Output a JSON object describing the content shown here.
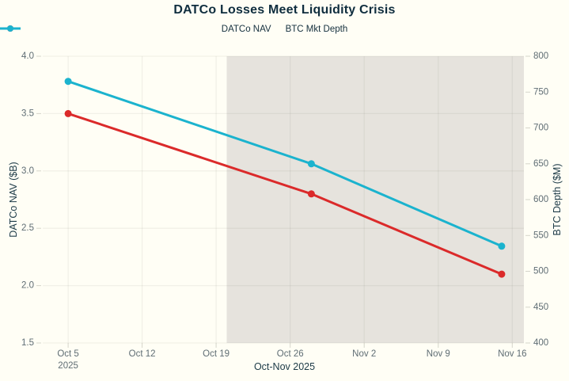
{
  "chart_data": {
    "type": "line",
    "title": "DATCo Losses Meet Liquidity Crisis",
    "xlabel": "Oct-Nov 2025",
    "ylabel_left": "DATCo NAV ($B)",
    "ylabel_right": "BTC Depth ($M)",
    "ylim_left": [
      1.5,
      4.0
    ],
    "ylim_right": [
      400,
      800
    ],
    "x_range_days": [
      -2.4,
      43.1
    ],
    "grid": "on",
    "legend_position": "top-center",
    "x_ticks": [
      {
        "day": 0,
        "label": "Oct 5",
        "sublabel": "2025"
      },
      {
        "day": 7,
        "label": "Oct 12",
        "sublabel": ""
      },
      {
        "day": 14,
        "label": "Oct 19",
        "sublabel": ""
      },
      {
        "day": 21,
        "label": "Oct 26",
        "sublabel": ""
      },
      {
        "day": 28,
        "label": "Nov 2",
        "sublabel": ""
      },
      {
        "day": 35,
        "label": "Nov 9",
        "sublabel": ""
      },
      {
        "day": 42,
        "label": "Nov 16",
        "sublabel": ""
      }
    ],
    "left_ticks": [
      {
        "value": 4.0,
        "label": "4.0"
      },
      {
        "value": 3.5,
        "label": "3.5"
      },
      {
        "value": 3.0,
        "label": "3.0"
      },
      {
        "value": 2.5,
        "label": "2.5"
      },
      {
        "value": 2.0,
        "label": "2.0"
      },
      {
        "value": 1.5,
        "label": "1.5"
      }
    ],
    "right_ticks": [
      {
        "value": 800,
        "label": "800"
      },
      {
        "value": 750,
        "label": "750"
      },
      {
        "value": 700,
        "label": "700"
      },
      {
        "value": 650,
        "label": "650"
      },
      {
        "value": 600,
        "label": "600"
      },
      {
        "value": 550,
        "label": "550"
      },
      {
        "value": 500,
        "label": "500"
      },
      {
        "value": 450,
        "label": "450"
      },
      {
        "value": 400,
        "label": "400"
      }
    ],
    "highlight_region": {
      "start_day": 15,
      "end_day": 43.1,
      "start_date": "Oct 20",
      "end_date": "Nov 17",
      "color": "#E6E3DD"
    },
    "series": [
      {
        "name": "DATCo NAV",
        "axis": "left",
        "color": "#DB2A2A",
        "x_days": [
          0,
          23,
          41
        ],
        "x_dates": [
          "Oct 5",
          "Oct 28",
          "Nov 15"
        ],
        "values": [
          3.5,
          2.8,
          2.1
        ]
      },
      {
        "name": "BTC Mkt Depth",
        "axis": "right",
        "color": "#1BB3CE",
        "x_days": [
          0,
          23,
          41
        ],
        "x_dates": [
          "Oct 5",
          "Oct 28",
          "Nov 15"
        ],
        "values": [
          765,
          650,
          535
        ]
      }
    ],
    "colors": {
      "background": "#FFFEF5",
      "highlight": "#E6E3DD",
      "gridline": "rgba(70,70,55,0.07)",
      "tick_mark": "rgba(70,70,55,0.22)",
      "tick_label": "#5F6D74",
      "title_text": "#0F2D3E",
      "axis_title_text": "#1C3A47",
      "legend_text": "#15303E"
    }
  }
}
